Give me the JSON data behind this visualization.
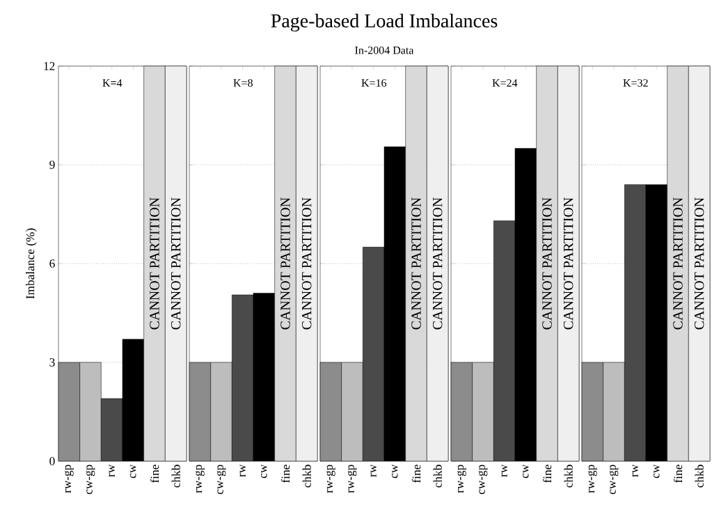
{
  "chart_data": [
    {
      "type": "bar",
      "ylabel": "Imbalance (%)",
      "categories": [
        "rw-gp",
        "cw-gp",
        "rw",
        "cw",
        "fine",
        "chkb"
      ],
      "values": [
        3,
        3,
        1.9,
        3.7,
        12,
        12
      ],
      "value_labels": [
        null,
        null,
        null,
        null,
        "CANNOT PARTITION",
        "CANNOT PARTITION"
      ],
      "colors": [
        "#8c8c8c",
        "#bdbdbd",
        "#4a4a4a",
        "#000000",
        "#d9d9d9",
        "#efefef"
      ],
      "ylim": [
        0,
        12
      ],
      "yticks": [
        0,
        3,
        6,
        9,
        12
      ],
      "grid": "y",
      "annotations": [
        "K=4"
      ]
    },
    {
      "type": "bar",
      "categories": [
        "rw-gp",
        "cw-gp",
        "rw",
        "cw",
        "fine",
        "chkb"
      ],
      "values": [
        3,
        3,
        5.05,
        5.1,
        12,
        12
      ],
      "value_labels": [
        null,
        null,
        null,
        null,
        "CANNOT PARTITION",
        "CANNOT PARTITION"
      ],
      "colors": [
        "#8c8c8c",
        "#bdbdbd",
        "#4a4a4a",
        "#000000",
        "#d9d9d9",
        "#efefef"
      ],
      "ylim": [
        0,
        12
      ],
      "yticks": [
        0,
        3,
        6,
        9,
        12
      ],
      "grid": "y",
      "tick_labels": "x",
      "annotations": [
        "K=8"
      ]
    },
    {
      "type": "bar",
      "title": "Page-based Load Imbalances",
      "subtitle": "In-2004 Data",
      "categories": [
        "rw-gp",
        "rw-gp",
        "rw",
        "cw",
        "fine",
        "chkb"
      ],
      "values": [
        3,
        3,
        6.5,
        9.55,
        12,
        12
      ],
      "value_labels": [
        null,
        null,
        null,
        null,
        "CANNOT PARTITION",
        "CANNOT PARTITION"
      ],
      "colors": [
        "#8c8c8c",
        "#bdbdbd",
        "#4a4a4a",
        "#000000",
        "#d9d9d9",
        "#efefef"
      ],
      "ylim": [
        0,
        12
      ],
      "yticks": [
        0,
        3,
        6,
        9,
        12
      ],
      "grid": "y",
      "tick_labels": "x",
      "annotations": [
        "K=16"
      ]
    },
    {
      "type": "bar",
      "categories": [
        "rw-gp",
        "cw-gp",
        "rw",
        "cw",
        "fine",
        "chkb"
      ],
      "values": [
        3,
        3,
        7.3,
        9.5,
        12,
        12
      ],
      "value_labels": [
        null,
        null,
        null,
        null,
        "CANNOT PARTITION",
        "CANNOT PARTITION"
      ],
      "colors": [
        "#8c8c8c",
        "#bdbdbd",
        "#4a4a4a",
        "#000000",
        "#d9d9d9",
        "#efefef"
      ],
      "ylim": [
        0,
        12
      ],
      "yticks": [
        0,
        3,
        6,
        9,
        12
      ],
      "grid": "y",
      "tick_labels": "x",
      "annotations": [
        "K=24"
      ]
    },
    {
      "type": "bar",
      "categories": [
        "rw-gp",
        "cw-gp",
        "rw",
        "cw",
        "fine",
        "chkb"
      ],
      "values": [
        3,
        3,
        8.4,
        8.4,
        12,
        12
      ],
      "value_labels": [
        null,
        null,
        null,
        null,
        "CANNOT PARTITION",
        "CANNOT PARTITION"
      ],
      "colors": [
        "#8c8c8c",
        "#bdbdbd",
        "#4a4a4a",
        "#000000",
        "#d9d9d9",
        "#efefef"
      ],
      "ylim": [
        0,
        12
      ],
      "yticks": [
        0,
        3,
        6,
        9,
        12
      ],
      "grid": "y",
      "tick_labels": "x",
      "annotations": [
        "K=32"
      ]
    }
  ]
}
